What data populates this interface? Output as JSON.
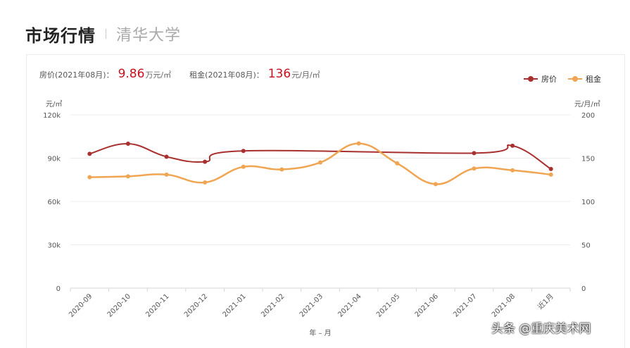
{
  "header": {
    "title": "市场行情",
    "subtitle": "清华大学"
  },
  "stats": {
    "price_label": "房价(2021年08月)：",
    "price_value": "9.86",
    "price_unit": "万元/㎡",
    "rent_label": "租金(2021年08月)：",
    "rent_value": "136",
    "rent_unit": "元/月/㎡"
  },
  "legend": [
    {
      "name": "房价",
      "color": "#a8302e"
    },
    {
      "name": "租金",
      "color": "#f0a553"
    }
  ],
  "watermark": "头条 @重庆美术网",
  "chart_data": {
    "type": "line",
    "xlabel": "年 – 月",
    "categories": [
      "2020-09",
      "2020-10",
      "2020-11",
      "2020-12",
      "2021-01",
      "2021-02",
      "2021-03",
      "2021-04",
      "2021-05",
      "2021-06",
      "2021-07",
      "2021-08",
      "近1月"
    ],
    "y_left": {
      "unit_label": "元/㎡",
      "ticks": [
        "0",
        "30k",
        "60k",
        "90k",
        "120k"
      ],
      "range": [
        0,
        120000
      ]
    },
    "y_right": {
      "unit_label": "元/月/㎡",
      "ticks": [
        "0",
        "50",
        "100",
        "150",
        "200"
      ],
      "range": [
        0,
        200
      ]
    },
    "grid": true,
    "legend_position": "top-right",
    "series": [
      {
        "name": "房价",
        "axis": "left",
        "color": "#a8302e",
        "values": [
          93000,
          100000,
          91000,
          87500,
          95000,
          null,
          null,
          null,
          null,
          null,
          93500,
          98600,
          82500
        ]
      },
      {
        "name": "租金",
        "axis": "right",
        "color": "#f0a553",
        "values": [
          128,
          129,
          131,
          122,
          140,
          137,
          145,
          167,
          144,
          120,
          138,
          136,
          131
        ]
      }
    ]
  }
}
